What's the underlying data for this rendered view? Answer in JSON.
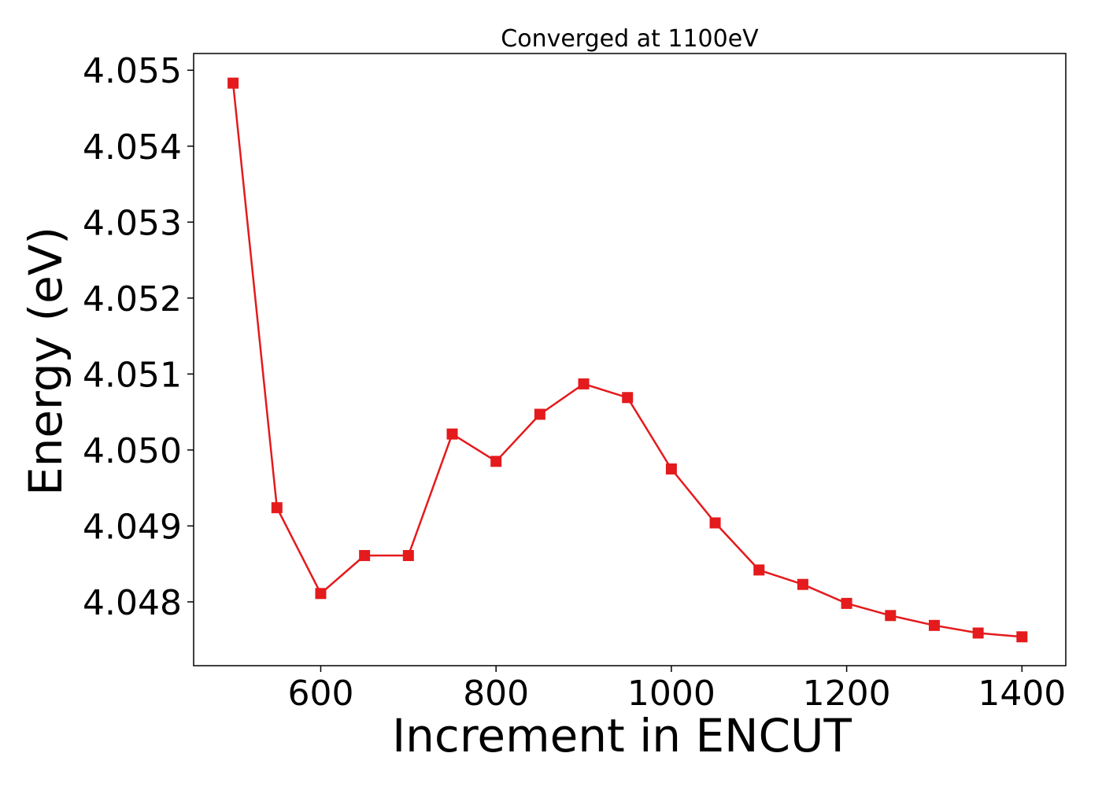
{
  "chart_data": {
    "type": "line",
    "title": "Converged at 1100eV",
    "xlabel": "Increment in ENCUT",
    "ylabel": "Energy (eV)",
    "xlim": [
      455,
      1450
    ],
    "ylim": [
      4.04716,
      4.05522
    ],
    "xticks": [
      600,
      800,
      1000,
      1200,
      1400
    ],
    "xtick_labels": [
      "600",
      "800",
      "1000",
      "1200",
      "1400"
    ],
    "yticks": [
      4.048,
      4.049,
      4.05,
      4.051,
      4.052,
      4.053,
      4.054,
      4.055
    ],
    "ytick_labels": [
      "4.048",
      "4.049",
      "4.050",
      "4.051",
      "4.052",
      "4.053",
      "4.054",
      "4.055"
    ],
    "grid": false,
    "legend": false,
    "series": [
      {
        "color": "#e41a1c",
        "marker": "square",
        "x": [
          500,
          550,
          600,
          650,
          700,
          750,
          800,
          850,
          900,
          950,
          1000,
          1050,
          1100,
          1150,
          1200,
          1250,
          1300,
          1350,
          1400
        ],
        "y": [
          4.05483,
          4.04924,
          4.04811,
          4.04861,
          4.04861,
          4.05021,
          4.04985,
          4.05047,
          4.05087,
          4.05069,
          4.04975,
          4.04904,
          4.04842,
          4.04823,
          4.04798,
          4.04782,
          4.04769,
          4.04759,
          4.04754
        ]
      }
    ]
  }
}
